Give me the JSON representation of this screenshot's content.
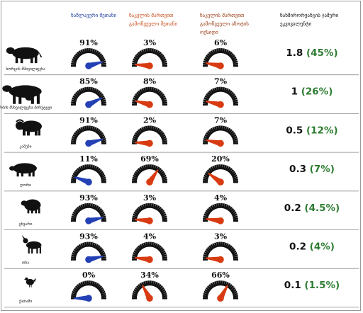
{
  "headers": [
    "ნაწლავური მეთანი",
    "ნაკელის მართვით გამოწვეული მეთანი",
    "ნაკელის მართვით გამოწვეული აზოტის ოქსიდი",
    "ნახშირორჟანგის ჯამური ეკვივალენტი"
  ],
  "colors": {
    "enteric": "#2340b5",
    "manure_methane": "#d83b12",
    "manure_n2o": "#d83b12",
    "total_number": "#111111",
    "total_percent": "#2e7d32",
    "gauge_ticks": "#111111"
  },
  "chart_data": {
    "type": "gauge",
    "series": [
      {
        "name": "ნაწლავური მეთანი",
        "values": [
          91,
          85,
          91,
          11,
          93,
          93,
          0
        ]
      },
      {
        "name": "ნაკელის მართვით გამოწვეული მეთანი",
        "values": [
          3,
          8,
          2,
          69,
          3,
          4,
          34
        ]
      },
      {
        "name": "ნაკელის მართვით გამოწვეული აზოტის ოქსიდი",
        "values": [
          6,
          7,
          7,
          20,
          4,
          3,
          66
        ]
      }
    ],
    "categories": [
      {
        "icon": "beef-cattle-icon",
        "label": "ხორცის მსხვილფეხა",
        "pcts": [
          "91%",
          "3%",
          "6%"
        ],
        "total": "1.8",
        "share": "(45%)"
      },
      {
        "icon": "dairy-cattle-icon",
        "label": "რძის მსხვილფეხა პირუტყვი",
        "pcts": [
          "85%",
          "8%",
          "7%"
        ],
        "total": "1",
        "share": "(26%)"
      },
      {
        "icon": "buffalo-icon",
        "label": "კამეჩი",
        "pcts": [
          "91%",
          "2%",
          "7%"
        ],
        "total": "0.5",
        "share": "(12%)"
      },
      {
        "icon": "pig-icon",
        "label": "ღორი",
        "pcts": [
          "11%",
          "69%",
          "20%"
        ],
        "total": "0.3",
        "share": "(7%)"
      },
      {
        "icon": "sheep-icon",
        "label": "ცხვარი",
        "pcts": [
          "93%",
          "3%",
          "4%"
        ],
        "total": "0.2",
        "share": "(4.5%)"
      },
      {
        "icon": "goat-icon",
        "label": "თხა",
        "pcts": [
          "93%",
          "4%",
          "3%"
        ],
        "total": "0.2",
        "share": "(4%)"
      },
      {
        "icon": "chicken-icon",
        "label": "ქათამი",
        "pcts": [
          "0%",
          "34%",
          "66%"
        ],
        "total": "0.1",
        "share": "(1.5%)"
      }
    ]
  }
}
